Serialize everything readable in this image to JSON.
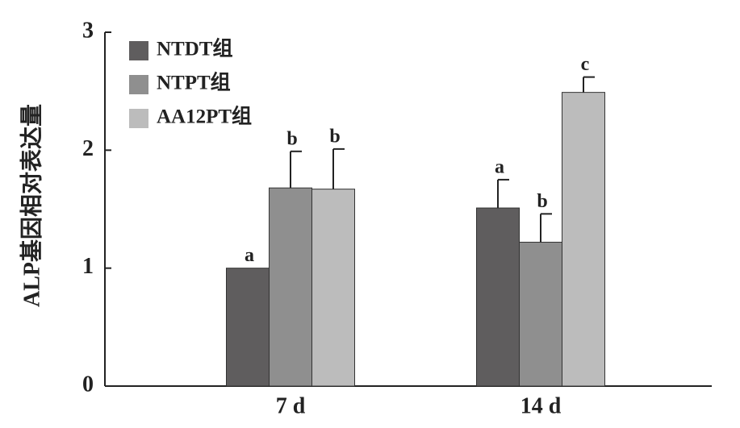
{
  "chart_data": {
    "type": "bar",
    "y_label": "ALP基因相对表达量",
    "categories": [
      "7 d",
      "14 d"
    ],
    "series": [
      {
        "name": "NTDT组",
        "color": "#5f5d5e",
        "values": [
          1.0,
          1.51
        ],
        "errors": [
          null,
          0.24
        ],
        "labels": [
          "a",
          "a"
        ]
      },
      {
        "name": "NTPT组",
        "color": "#8f8f8f",
        "values": [
          1.68,
          1.22
        ],
        "errors": [
          0.31,
          0.24
        ],
        "labels": [
          "b",
          "b"
        ]
      },
      {
        "name": "AA12PT组",
        "color": "#bcbcbc",
        "values": [
          1.67,
          2.49
        ],
        "errors": [
          0.34,
          0.13
        ],
        "labels": [
          "b",
          "c"
        ]
      }
    ],
    "ylim": [
      0,
      3
    ],
    "yticks": [
      0,
      1,
      2,
      3
    ]
  }
}
